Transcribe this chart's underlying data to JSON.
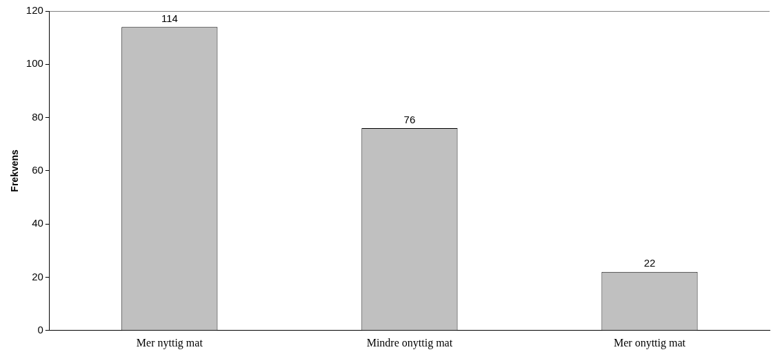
{
  "chart_data": {
    "type": "bar",
    "ylabel": "Frekvens",
    "categories": [
      "Mer nyttig mat",
      "Mindre onyttig mat",
      "Mer onyttig mat"
    ],
    "values": [
      114,
      76,
      22
    ],
    "color": "#c0c0c0",
    "ylim": [
      0,
      120
    ],
    "yticks": [
      0,
      20,
      40,
      60,
      80,
      100,
      120
    ],
    "grid": false,
    "legend": false,
    "data_labels": true
  }
}
